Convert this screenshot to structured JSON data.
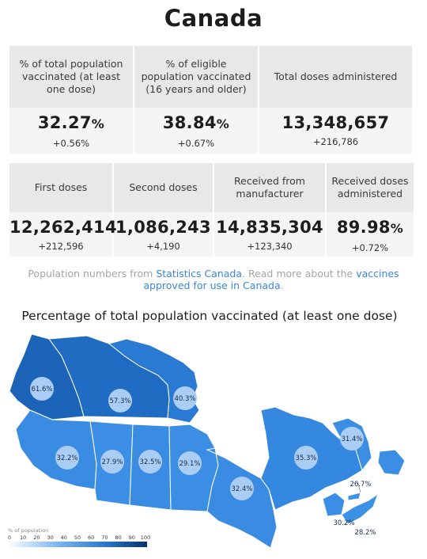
{
  "page": {
    "title": "Canada"
  },
  "summary_top": [
    {
      "label": "% of total population vaccinated (at least one dose)",
      "value": "32.27",
      "unit": "%",
      "delta": "+0.56%"
    },
    {
      "label": "% of eligible population vaccinated (16 years and older)",
      "value": "38.84",
      "unit": "%",
      "delta": "+0.67%"
    },
    {
      "label": "Total doses administered",
      "value": "13,348,657",
      "unit": "",
      "delta": "+216,786"
    }
  ],
  "summary_bottom": [
    {
      "label": "First doses",
      "value": "12,262,414",
      "unit": "",
      "delta": "+212,596"
    },
    {
      "label": "Second doses",
      "value": "1,086,243",
      "unit": "",
      "delta": "+4,190"
    },
    {
      "label": "Received from manufacturer",
      "value": "14,835,304",
      "unit": "",
      "delta": "+123,340"
    },
    {
      "label": "Received doses administered",
      "value": "89.98",
      "unit": "%",
      "delta": "+0.72%"
    }
  ],
  "source_note": {
    "prefix": "Population numbers from ",
    "link1": "Statistics Canada",
    "middle": ". Read more about the ",
    "link2": "vaccines approved for use in Canada",
    "suffix": "."
  },
  "map": {
    "title": "Percentage of total population vaccinated (at least one dose)",
    "legend_title": "% of population",
    "legend_ticks": [
      "0",
      "10",
      "20",
      "30",
      "40",
      "50",
      "60",
      "70",
      "80",
      "90",
      "100"
    ],
    "colors": {
      "low": "#3b8ee3",
      "mid": "#2e7ed8",
      "high": "#1c64b8",
      "bubble": "#a9cdf4",
      "border": "#ffffff"
    },
    "regions": [
      {
        "name": "Yukon",
        "value": "61.6%"
      },
      {
        "name": "Northwest Territories",
        "value": "57.3%"
      },
      {
        "name": "Nunavut",
        "value": "40.3%"
      },
      {
        "name": "British Columbia",
        "value": "32.2%"
      },
      {
        "name": "Alberta",
        "value": "27.9%"
      },
      {
        "name": "Saskatchewan",
        "value": "32.5%"
      },
      {
        "name": "Manitoba",
        "value": "29.1%"
      },
      {
        "name": "Ontario",
        "value": "32.4%"
      },
      {
        "name": "Quebec",
        "value": "35.3%"
      },
      {
        "name": "Newfoundland and Labrador",
        "value": "31.4%"
      },
      {
        "name": "Prince Edward Island",
        "value": "26.7%"
      },
      {
        "name": "New Brunswick",
        "value": "30.2%"
      },
      {
        "name": "Nova Scotia",
        "value": "28.2%"
      }
    ]
  }
}
